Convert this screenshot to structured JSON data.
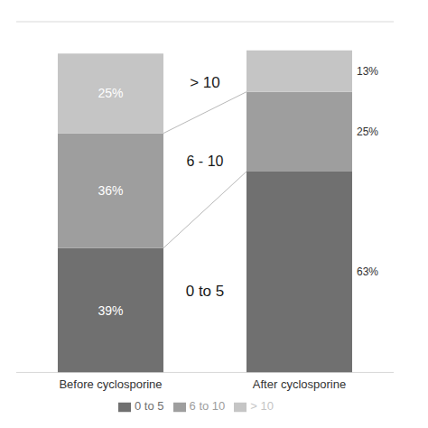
{
  "chart_data": {
    "type": "bar",
    "stacked": true,
    "categories": [
      "Before cyclosporine",
      "After cyclosporine"
    ],
    "series": [
      {
        "name": "0 to 5",
        "color": "#707070",
        "values": [
          39,
          63
        ],
        "value_labels": [
          "39%",
          "63%"
        ]
      },
      {
        "name": "6 to 10",
        "color": "#9e9e9e",
        "values": [
          36,
          25
        ],
        "value_labels": [
          "36%",
          "25%"
        ]
      },
      {
        "name": "> 10",
        "color": "#c5c5c5",
        "values": [
          25,
          13
        ],
        "value_labels": [
          "25%",
          "13%"
        ]
      }
    ],
    "annotations": [
      "0 to 5",
      "6 - 10",
      "> 10"
    ],
    "ylim": [
      0,
      110
    ],
    "yticks": [
      0,
      10,
      20,
      30,
      40,
      50,
      60,
      70,
      80,
      90,
      100,
      110
    ],
    "grid": true,
    "legend": "bottom",
    "data_labels": true,
    "tick_labels": "x"
  }
}
